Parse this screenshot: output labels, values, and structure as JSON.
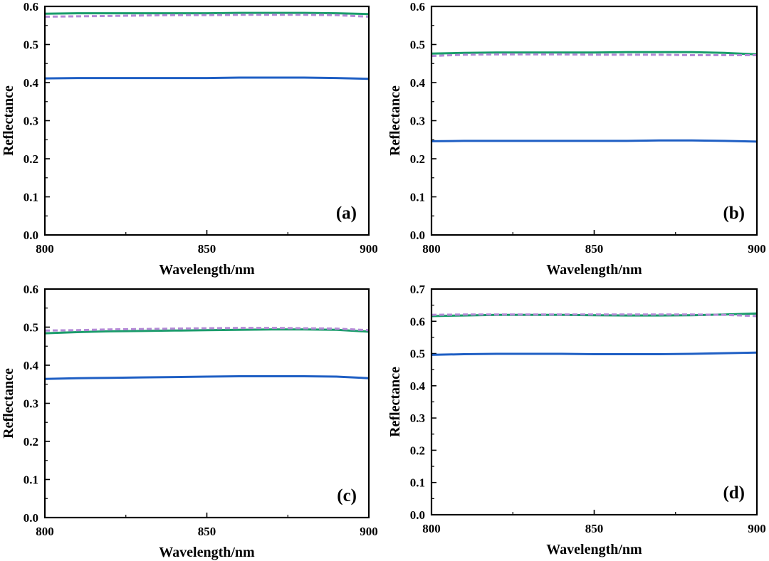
{
  "chart_data": [
    {
      "type": "line",
      "panel_label": "(a)",
      "xlabel": "Wavelength/nm",
      "ylabel": "Reflectance",
      "xlim": [
        800,
        900
      ],
      "ylim": [
        0.0,
        0.6
      ],
      "x_ticks": [
        "800",
        "850",
        "900"
      ],
      "y_ticks": [
        "0.0",
        "0.1",
        "0.2",
        "0.3",
        "0.4",
        "0.5",
        "0.6"
      ],
      "legend": "none",
      "grid": false,
      "series": [
        {
          "color": "#1f5fc4",
          "style": "solid",
          "x": [
            800,
            810,
            820,
            830,
            840,
            850,
            860,
            870,
            880,
            890,
            900
          ],
          "y": [
            0.411,
            0.412,
            0.412,
            0.412,
            0.412,
            0.412,
            0.413,
            0.413,
            0.413,
            0.412,
            0.41
          ]
        },
        {
          "color": "#1a9c6b",
          "style": "solid",
          "x": [
            800,
            810,
            820,
            830,
            840,
            850,
            860,
            870,
            880,
            890,
            900
          ],
          "y": [
            0.581,
            0.582,
            0.582,
            0.582,
            0.582,
            0.582,
            0.583,
            0.583,
            0.583,
            0.582,
            0.58
          ]
        },
        {
          "color": "#b48ad6",
          "style": "dashed",
          "x": [
            800,
            810,
            820,
            830,
            840,
            850,
            860,
            870,
            880,
            890,
            900
          ],
          "y": [
            0.573,
            0.574,
            0.575,
            0.576,
            0.577,
            0.577,
            0.578,
            0.578,
            0.578,
            0.577,
            0.573
          ]
        }
      ]
    },
    {
      "type": "line",
      "panel_label": "(b)",
      "xlabel": "Wavelength/nm",
      "ylabel": "Reflectance",
      "xlim": [
        800,
        900
      ],
      "ylim": [
        0.0,
        0.6
      ],
      "x_ticks": [
        "800",
        "850",
        "900"
      ],
      "y_ticks": [
        "0.0",
        "0.1",
        "0.2",
        "0.3",
        "0.4",
        "0.5",
        "0.6"
      ],
      "legend": "none",
      "grid": false,
      "series": [
        {
          "color": "#1f5fc4",
          "style": "solid",
          "x": [
            800,
            810,
            820,
            830,
            840,
            850,
            860,
            870,
            880,
            890,
            900
          ],
          "y": [
            0.246,
            0.247,
            0.247,
            0.247,
            0.247,
            0.247,
            0.247,
            0.248,
            0.248,
            0.247,
            0.245
          ]
        },
        {
          "color": "#1a9c6b",
          "style": "solid",
          "x": [
            800,
            810,
            820,
            830,
            840,
            850,
            860,
            870,
            880,
            890,
            900
          ],
          "y": [
            0.476,
            0.478,
            0.479,
            0.479,
            0.479,
            0.479,
            0.48,
            0.48,
            0.48,
            0.478,
            0.474
          ]
        },
        {
          "color": "#b48ad6",
          "style": "dashed",
          "x": [
            800,
            810,
            820,
            830,
            840,
            850,
            860,
            870,
            880,
            890,
            900
          ],
          "y": [
            0.47,
            0.473,
            0.474,
            0.474,
            0.474,
            0.473,
            0.473,
            0.473,
            0.472,
            0.472,
            0.472
          ]
        }
      ]
    },
    {
      "type": "line",
      "panel_label": "(c)",
      "xlabel": "Wavelength/nm",
      "ylabel": "Reflectance",
      "xlim": [
        800,
        900
      ],
      "ylim": [
        0.0,
        0.6
      ],
      "x_ticks": [
        "800",
        "850",
        "900"
      ],
      "y_ticks": [
        "0.0",
        "0.1",
        "0.2",
        "0.3",
        "0.4",
        "0.5",
        "0.6"
      ],
      "legend": "none",
      "grid": false,
      "series": [
        {
          "color": "#1f5fc4",
          "style": "solid",
          "x": [
            800,
            810,
            820,
            830,
            840,
            850,
            860,
            870,
            880,
            890,
            900
          ],
          "y": [
            0.364,
            0.366,
            0.367,
            0.368,
            0.369,
            0.37,
            0.371,
            0.371,
            0.371,
            0.37,
            0.366
          ]
        },
        {
          "color": "#1a9c6b",
          "style": "solid",
          "x": [
            800,
            810,
            820,
            830,
            840,
            850,
            860,
            870,
            880,
            890,
            900
          ],
          "y": [
            0.484,
            0.487,
            0.489,
            0.49,
            0.491,
            0.492,
            0.493,
            0.494,
            0.494,
            0.493,
            0.488
          ]
        },
        {
          "color": "#b48ad6",
          "style": "dashed",
          "x": [
            800,
            810,
            820,
            830,
            840,
            850,
            860,
            870,
            880,
            890,
            900
          ],
          "y": [
            0.491,
            0.492,
            0.494,
            0.495,
            0.496,
            0.497,
            0.498,
            0.498,
            0.497,
            0.496,
            0.492
          ]
        }
      ]
    },
    {
      "type": "line",
      "panel_label": "(d)",
      "xlabel": "Wavelength/nm",
      "ylabel": "Reflectance",
      "xlim": [
        800,
        900
      ],
      "ylim": [
        0.0,
        0.7
      ],
      "x_ticks": [
        "800",
        "850",
        "900"
      ],
      "y_ticks": [
        "0.0",
        "0.1",
        "0.2",
        "0.3",
        "0.4",
        "0.5",
        "0.6",
        "0.7"
      ],
      "legend": "none",
      "grid": false,
      "series": [
        {
          "color": "#1f5fc4",
          "style": "solid",
          "x": [
            800,
            810,
            820,
            830,
            840,
            850,
            860,
            870,
            880,
            890,
            900
          ],
          "y": [
            0.496,
            0.498,
            0.499,
            0.499,
            0.499,
            0.498,
            0.498,
            0.498,
            0.499,
            0.501,
            0.503
          ]
        },
        {
          "color": "#1a9c6b",
          "style": "solid",
          "x": [
            800,
            810,
            820,
            830,
            840,
            850,
            860,
            870,
            880,
            890,
            900
          ],
          "y": [
            0.616,
            0.618,
            0.62,
            0.62,
            0.62,
            0.619,
            0.618,
            0.618,
            0.619,
            0.621,
            0.624
          ]
        },
        {
          "color": "#b48ad6",
          "style": "dashed",
          "x": [
            800,
            810,
            820,
            830,
            840,
            850,
            860,
            870,
            880,
            890,
            900
          ],
          "y": [
            0.62,
            0.621,
            0.621,
            0.621,
            0.621,
            0.621,
            0.621,
            0.621,
            0.621,
            0.62,
            0.616
          ]
        }
      ]
    }
  ]
}
